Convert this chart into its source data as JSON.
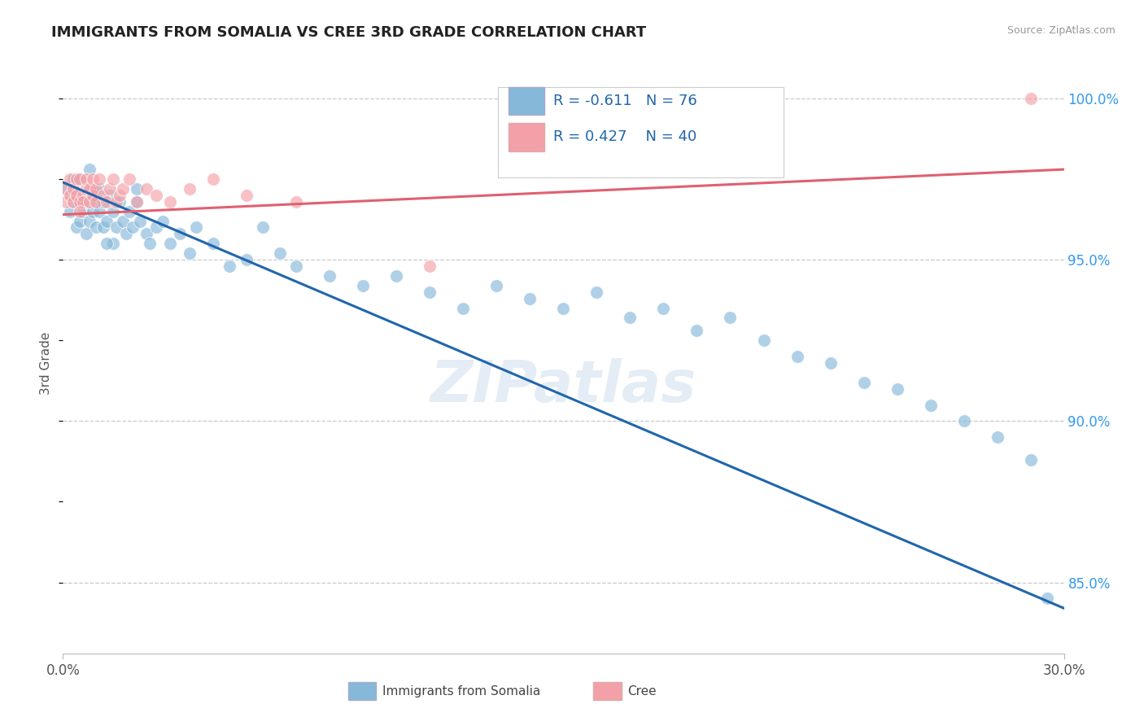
{
  "title": "IMMIGRANTS FROM SOMALIA VS CREE 3RD GRADE CORRELATION CHART",
  "source_text": "Source: ZipAtlas.com",
  "ylabel": "3rd Grade",
  "x_label_blue": "Immigrants from Somalia",
  "x_label_pink": "Cree",
  "xlim": [
    0.0,
    0.3
  ],
  "ylim": [
    0.828,
    1.008
  ],
  "xtick_labels": [
    "0.0%",
    "30.0%"
  ],
  "xtick_positions": [
    0.0,
    0.3
  ],
  "ytick_positions": [
    0.85,
    0.9,
    0.95,
    1.0
  ],
  "ytick_right_labels": [
    "85.0%",
    "90.0%",
    "95.0%",
    "100.0%"
  ],
  "blue_color": "#85b8d9",
  "pink_color": "#f4a0a8",
  "blue_line_color": "#2166ac",
  "pink_line_color": "#e06070",
  "background_color": "#ffffff",
  "grid_color": "#c8c8c8",
  "watermark": "ZIPatlas",
  "blue_trend_x": [
    0.0,
    0.3
  ],
  "blue_trend_y": [
    0.974,
    0.842
  ],
  "pink_trend_x": [
    0.0,
    0.3
  ],
  "pink_trend_y": [
    0.964,
    0.978
  ],
  "blue_x": [
    0.001,
    0.002,
    0.002,
    0.003,
    0.003,
    0.004,
    0.004,
    0.005,
    0.005,
    0.006,
    0.006,
    0.007,
    0.007,
    0.008,
    0.008,
    0.009,
    0.009,
    0.01,
    0.01,
    0.011,
    0.011,
    0.012,
    0.012,
    0.013,
    0.014,
    0.015,
    0.015,
    0.016,
    0.017,
    0.018,
    0.019,
    0.02,
    0.021,
    0.022,
    0.023,
    0.025,
    0.026,
    0.028,
    0.03,
    0.032,
    0.035,
    0.038,
    0.04,
    0.045,
    0.05,
    0.055,
    0.06,
    0.065,
    0.07,
    0.08,
    0.09,
    0.1,
    0.11,
    0.12,
    0.13,
    0.14,
    0.15,
    0.16,
    0.17,
    0.18,
    0.19,
    0.2,
    0.21,
    0.22,
    0.23,
    0.24,
    0.25,
    0.26,
    0.27,
    0.28,
    0.29,
    0.295,
    0.003,
    0.008,
    0.013,
    0.022
  ],
  "blue_y": [
    0.972,
    0.97,
    0.965,
    0.968,
    0.972,
    0.96,
    0.968,
    0.975,
    0.962,
    0.97,
    0.965,
    0.968,
    0.958,
    0.972,
    0.962,
    0.965,
    0.97,
    0.968,
    0.96,
    0.972,
    0.965,
    0.96,
    0.968,
    0.962,
    0.97,
    0.965,
    0.955,
    0.96,
    0.968,
    0.962,
    0.958,
    0.965,
    0.96,
    0.968,
    0.962,
    0.958,
    0.955,
    0.96,
    0.962,
    0.955,
    0.958,
    0.952,
    0.96,
    0.955,
    0.948,
    0.95,
    0.96,
    0.952,
    0.948,
    0.945,
    0.942,
    0.945,
    0.94,
    0.935,
    0.942,
    0.938,
    0.935,
    0.94,
    0.932,
    0.935,
    0.928,
    0.932,
    0.925,
    0.92,
    0.918,
    0.912,
    0.91,
    0.905,
    0.9,
    0.895,
    0.888,
    0.845,
    0.975,
    0.978,
    0.955,
    0.972
  ],
  "pink_x": [
    0.001,
    0.001,
    0.002,
    0.002,
    0.003,
    0.003,
    0.004,
    0.004,
    0.005,
    0.005,
    0.006,
    0.006,
    0.007,
    0.007,
    0.008,
    0.008,
    0.009,
    0.009,
    0.01,
    0.01,
    0.011,
    0.012,
    0.013,
    0.014,
    0.015,
    0.016,
    0.017,
    0.018,
    0.02,
    0.022,
    0.025,
    0.028,
    0.032,
    0.038,
    0.045,
    0.055,
    0.07,
    0.11,
    0.29,
    0.005
  ],
  "pink_y": [
    0.972,
    0.968,
    0.97,
    0.975,
    0.968,
    0.972,
    0.975,
    0.97,
    0.968,
    0.975,
    0.97,
    0.968,
    0.972,
    0.975,
    0.968,
    0.972,
    0.97,
    0.975,
    0.968,
    0.972,
    0.975,
    0.97,
    0.968,
    0.972,
    0.975,
    0.968,
    0.97,
    0.972,
    0.975,
    0.968,
    0.972,
    0.97,
    0.968,
    0.972,
    0.975,
    0.97,
    0.968,
    0.948,
    1.0,
    0.965
  ]
}
